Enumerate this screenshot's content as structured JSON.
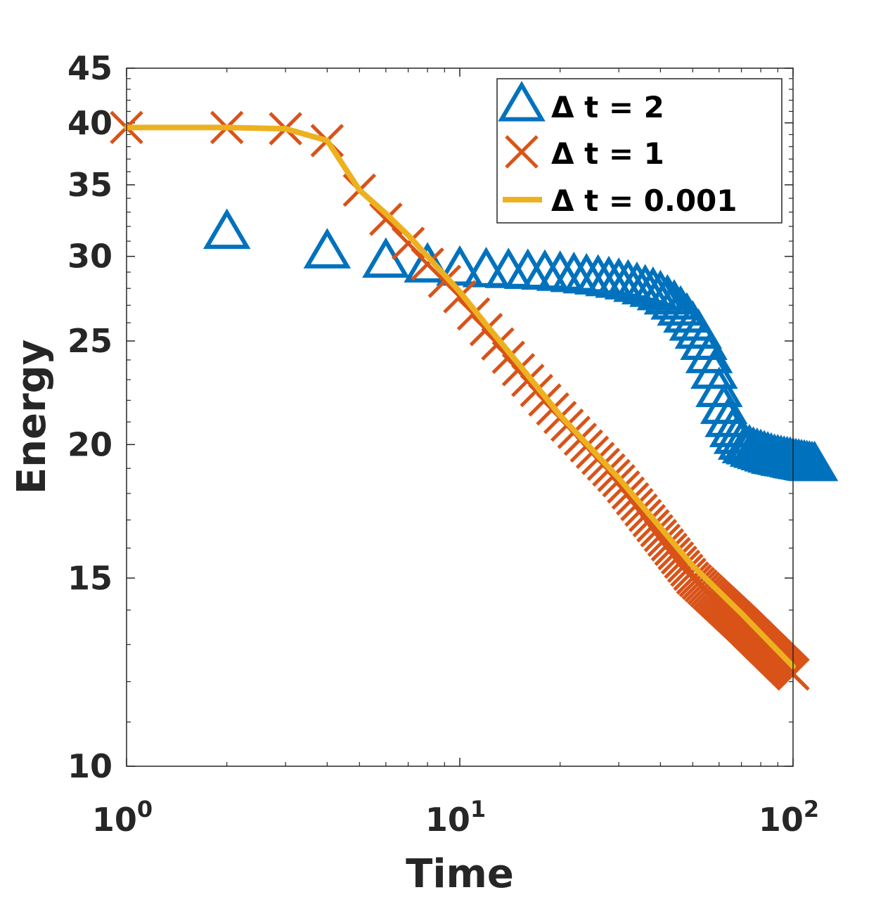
{
  "chart_data": {
    "type": "line",
    "scale": {
      "x": "log",
      "y": "log"
    },
    "xlabel": "Time",
    "ylabel": "Energy",
    "xlim": [
      1,
      100
    ],
    "ylim": [
      10,
      45
    ],
    "x_ticks": [
      {
        "value": 1,
        "base": "10",
        "exp": "0"
      },
      {
        "value": 10,
        "base": "10",
        "exp": "1"
      },
      {
        "value": 100,
        "base": "10",
        "exp": "2"
      }
    ],
    "y_ticks": [
      {
        "value": 10,
        "label": "10"
      },
      {
        "value": 15,
        "label": "15"
      },
      {
        "value": 20,
        "label": "20"
      },
      {
        "value": 25,
        "label": "25"
      },
      {
        "value": 30,
        "label": "30"
      },
      {
        "value": 35,
        "label": "35"
      },
      {
        "value": 40,
        "label": "40"
      },
      {
        "value": 45,
        "label": "45"
      }
    ],
    "legend_position": "top-right",
    "series": [
      {
        "name": "Δ t = 2",
        "marker": "triangle",
        "color": "#0072BD",
        "dt": 2,
        "t_start": 2,
        "t_end": 116,
        "values": [
          31.5,
          30.2,
          29.6,
          29.3,
          29.1,
          29.0,
          28.95,
          28.9,
          28.85,
          28.78,
          28.7,
          28.62,
          28.55,
          28.45,
          28.35,
          28.25,
          28.1,
          27.95,
          27.8,
          27.6,
          27.35,
          27.05,
          26.7,
          26.3,
          25.85,
          25.4,
          24.8,
          24.1,
          23.3,
          22.4,
          21.6,
          21.0,
          20.55,
          20.25,
          20.0,
          19.85,
          19.8,
          19.7,
          19.65,
          19.6,
          19.55,
          19.5,
          19.45,
          19.4,
          19.38,
          19.35,
          19.32,
          19.3,
          19.28,
          19.25,
          19.22,
          19.2,
          19.18,
          19.16,
          19.14,
          19.12,
          19.1,
          19.1
        ]
      },
      {
        "name": "Δ t = 1",
        "marker": "x",
        "color": "#D95319",
        "dt": 1,
        "t_start": 1,
        "t_end": 100,
        "x_anchors": [
          1,
          2,
          3,
          4,
          5,
          6,
          8,
          10,
          15,
          20,
          30,
          50,
          70,
          100
        ],
        "y_anchors": [
          39.6,
          39.6,
          39.5,
          38.5,
          34.6,
          32.5,
          29.5,
          27.5,
          23.5,
          21.2,
          18.5,
          15.0,
          13.6,
          12.2
        ]
      },
      {
        "name": "Δ t = 0.001",
        "marker": "none",
        "color": "#EDB120",
        "x": [
          1,
          2,
          3,
          4,
          5,
          6,
          7,
          8,
          10,
          12,
          15,
          20,
          30,
          50,
          70,
          100
        ],
        "values": [
          39.6,
          39.6,
          39.5,
          38.5,
          34.6,
          32.9,
          31.4,
          30.0,
          27.8,
          25.9,
          23.8,
          21.3,
          18.6,
          15.4,
          13.9,
          12.4
        ]
      }
    ]
  }
}
